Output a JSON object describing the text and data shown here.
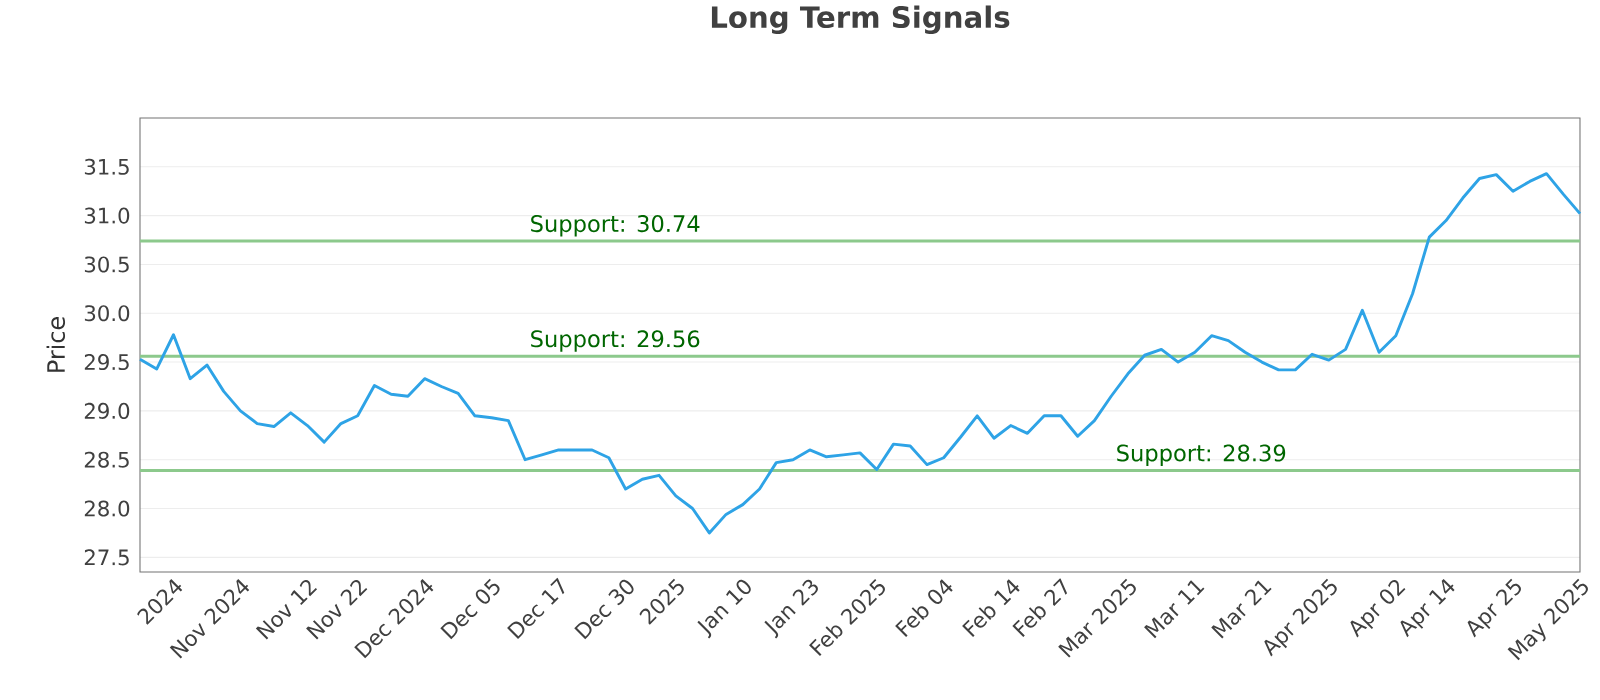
{
  "chart_data": {
    "type": "line",
    "title": "Long Term Signals",
    "ylabel": "Price",
    "categories": [
      null,
      null,
      "2024",
      null,
      null,
      null,
      "Nov 2024",
      null,
      null,
      null,
      "Nov 12",
      null,
      null,
      "Nov 22",
      null,
      null,
      null,
      "Dec 2024",
      null,
      null,
      null,
      "Dec 05",
      null,
      null,
      null,
      "Dec 17",
      null,
      null,
      null,
      "Dec 30",
      null,
      null,
      "2025",
      null,
      null,
      null,
      "Jan 10",
      null,
      null,
      null,
      "Jan 23",
      null,
      null,
      null,
      "Feb 2025",
      null,
      null,
      null,
      "Feb 04",
      null,
      null,
      null,
      "Feb 14",
      null,
      null,
      "Feb 27",
      null,
      null,
      null,
      "Mar 2025",
      null,
      null,
      null,
      "Mar 11",
      null,
      null,
      null,
      "Mar 21",
      null,
      null,
      null,
      "Apr 2025",
      null,
      null,
      null,
      "Apr 02",
      null,
      null,
      "Apr 14",
      null,
      null,
      null,
      "Apr 25",
      null,
      null,
      null,
      "May 2025"
    ],
    "series": [
      {
        "color": "#2ea3e6",
        "values": [
          29.53,
          29.43,
          29.78,
          29.33,
          29.47,
          29.2,
          29.0,
          28.87,
          28.84,
          28.98,
          28.85,
          28.68,
          28.87,
          28.95,
          29.26,
          29.17,
          29.15,
          29.33,
          29.25,
          29.18,
          28.95,
          28.93,
          28.9,
          28.5,
          28.55,
          28.6,
          28.6,
          28.6,
          28.52,
          28.2,
          28.3,
          28.34,
          28.13,
          28.0,
          27.75,
          27.94,
          28.04,
          28.2,
          28.47,
          28.5,
          28.6,
          28.53,
          28.55,
          28.57,
          28.4,
          28.66,
          28.64,
          28.45,
          28.52,
          28.73,
          28.95,
          28.72,
          28.85,
          28.77,
          28.95,
          28.95,
          28.74,
          28.9,
          29.15,
          29.38,
          29.57,
          29.63,
          29.5,
          29.6,
          29.77,
          29.72,
          29.6,
          29.5,
          29.42,
          29.42,
          29.58,
          29.52,
          29.63,
          30.03,
          29.6,
          29.77,
          30.2,
          30.78,
          30.95,
          31.18,
          31.38,
          31.42,
          31.25,
          31.35,
          31.43,
          31.22,
          31.02
        ]
      }
    ],
    "ylim": [
      27.35,
      32.0
    ],
    "yticks": [
      27.5,
      {
        "value": 28,
        "label": "28.0"
      },
      28.5,
      {
        "value": 29,
        "label": "29.0"
      },
      29.5,
      {
        "value": 30,
        "label": "30.0"
      },
      30.5,
      {
        "value": 31,
        "label": "31.0"
      },
      31.5
    ],
    "grid": "y",
    "legend": false,
    "marker": "none",
    "line_style": "solid",
    "ref_lines": [
      {
        "axis": "y",
        "value": 30.74,
        "label": "Support: 30.74",
        "color": "#8cc98c"
      },
      {
        "axis": "y",
        "value": 29.56,
        "label": "Support: 29.56",
        "color": "#8cc98c"
      },
      {
        "axis": "y",
        "value": 28.39,
        "label": "Support: 28.39",
        "color": "#8cc98c"
      }
    ]
  }
}
